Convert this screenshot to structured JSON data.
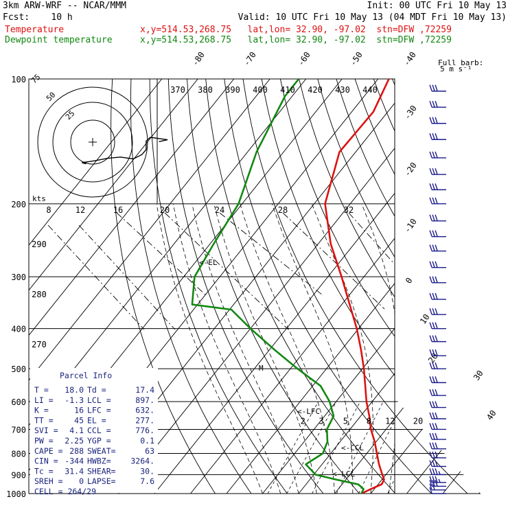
{
  "header": {
    "line1_left": "3km ARW-WRF -- NCAR/MMM",
    "line1_right": "Init: 00 UTC Fri 10 May 13",
    "line2_left": "Fcst:    10 h",
    "line2_right": "Valid: 10 UTC Fri 10 May 13 (04 MDT Fri 10 May 13)",
    "line3_label": "Temperature",
    "line3_info": "x,y=514.53,268.75   lat,lon= 32.90, -97.02  stn=DFW ,72259",
    "line4_label": "Dewpoint temperature",
    "line4_info": "x,y=514.53,268.75   lat,lon= 32.90, -97.02  stn=DFW ,72259",
    "barb_legend_1": "Full barb:",
    "barb_legend_2": "5 m s⁻¹"
  },
  "colors": {
    "temperature": "#dd1111",
    "dewpoint": "#118811",
    "text_blue": "#1a237e",
    "barbs": "#1a1a8c",
    "hodograph": "#000000"
  },
  "chart_data": {
    "type": "line",
    "pressure_levels": [
      100,
      200,
      300,
      400,
      500,
      600,
      700,
      800,
      900,
      1000
    ],
    "isotherm_labels": [
      "-80",
      "-70",
      "-60",
      "-50",
      "-40",
      "-30",
      "-20",
      "-10",
      "0",
      "10",
      "20",
      "30",
      "40"
    ],
    "theta_labels": [
      "370",
      "380",
      "390",
      "400",
      "410",
      "420",
      "430",
      "440"
    ],
    "theta_low_labels": [
      "290",
      "280",
      "270"
    ],
    "mixing_ratio_labels": [
      "2",
      "3",
      "5",
      "8",
      "12",
      "20"
    ],
    "speed_labels": [
      "8",
      "12",
      "16",
      "20",
      "24",
      "28",
      "32"
    ],
    "speed_units": "kts",
    "hodo_ring_labels": [
      "25",
      "50",
      "75"
    ],
    "series": [
      {
        "name": "Temperature",
        "profile": [
          [
            1000,
            17.4
          ],
          [
            975,
            19.0
          ],
          [
            950,
            21.0
          ],
          [
            925,
            20.6
          ],
          [
            900,
            19.0
          ],
          [
            850,
            15.8
          ],
          [
            800,
            12.8
          ],
          [
            750,
            9.6
          ],
          [
            700,
            5.8
          ],
          [
            650,
            2.4
          ],
          [
            600,
            -1.6
          ],
          [
            550,
            -5.4
          ],
          [
            500,
            -9.6
          ],
          [
            450,
            -14.6
          ],
          [
            400,
            -20.5
          ],
          [
            350,
            -27.8
          ],
          [
            300,
            -36.2
          ],
          [
            250,
            -46.5
          ],
          [
            200,
            -57.0
          ],
          [
            150,
            -64.5
          ],
          [
            120,
            -64.0
          ],
          [
            100,
            -67.0
          ]
        ]
      },
      {
        "name": "Dewpoint temperature",
        "profile": [
          [
            1000,
            17.4
          ],
          [
            975,
            17.0
          ],
          [
            950,
            14.5
          ],
          [
            925,
            7.2
          ],
          [
            900,
            0.5
          ],
          [
            850,
            -4.5
          ],
          [
            800,
            -2.2
          ],
          [
            750,
            -3.5
          ],
          [
            700,
            -6.4
          ],
          [
            650,
            -7.5
          ],
          [
            600,
            -11.8
          ],
          [
            550,
            -17.8
          ],
          [
            500,
            -28.0
          ],
          [
            450,
            -38.6
          ],
          [
            400,
            -50.0
          ],
          [
            360,
            -59.5
          ],
          [
            350,
            -71.5
          ],
          [
            300,
            -77.0
          ],
          [
            250,
            -79.0
          ],
          [
            200,
            -81.0
          ],
          [
            150,
            -87.5
          ],
          [
            110,
            -92.0
          ],
          [
            100,
            -92.0
          ]
        ]
      }
    ],
    "annotations": [
      "<-EL",
      "<-LFC",
      "<-CCL",
      "<-LCL",
      "M"
    ],
    "hodograph": [
      [
        -2,
        -13
      ],
      [
        -3,
        -11
      ],
      [
        0,
        -8
      ],
      [
        3,
        -4
      ],
      [
        6,
        -2
      ],
      [
        9,
        -5
      ],
      [
        11,
        2
      ],
      [
        12,
        10
      ],
      [
        12,
        24
      ],
      [
        13,
        30
      ],
      [
        15,
        28
      ],
      [
        17,
        26
      ],
      [
        15,
        23
      ]
    ],
    "wind_barbs": [
      {
        "p": 1000,
        "spd": 10,
        "dir": 160
      },
      {
        "p": 980,
        "spd": 20,
        "dir": 170
      },
      {
        "p": 960,
        "spd": 30,
        "dir": 190
      },
      {
        "p": 940,
        "spd": 35,
        "dir": 200
      },
      {
        "p": 900,
        "spd": 35,
        "dir": 215
      },
      {
        "p": 860,
        "spd": 30,
        "dir": 220
      },
      {
        "p": 820,
        "spd": 30,
        "dir": 225
      },
      {
        "p": 780,
        "spd": 30,
        "dir": 228
      },
      {
        "p": 740,
        "spd": 30,
        "dir": 230
      },
      {
        "p": 700,
        "spd": 30,
        "dir": 232
      },
      {
        "p": 660,
        "spd": 30,
        "dir": 232
      },
      {
        "p": 620,
        "spd": 30,
        "dir": 232
      },
      {
        "p": 580,
        "spd": 30,
        "dir": 232
      },
      {
        "p": 540,
        "spd": 30,
        "dir": 234
      },
      {
        "p": 500,
        "spd": 30,
        "dir": 235
      },
      {
        "p": 465,
        "spd": 30,
        "dir": 236
      },
      {
        "p": 430,
        "spd": 30,
        "dir": 237
      },
      {
        "p": 400,
        "spd": 30,
        "dir": 238
      },
      {
        "p": 370,
        "spd": 30,
        "dir": 238
      },
      {
        "p": 340,
        "spd": 30,
        "dir": 240
      },
      {
        "p": 310,
        "spd": 30,
        "dir": 240
      },
      {
        "p": 285,
        "spd": 30,
        "dir": 240
      },
      {
        "p": 260,
        "spd": 30,
        "dir": 242
      },
      {
        "p": 240,
        "spd": 30,
        "dir": 242
      },
      {
        "p": 220,
        "spd": 30,
        "dir": 242
      },
      {
        "p": 200,
        "spd": 30,
        "dir": 244
      },
      {
        "p": 185,
        "spd": 30,
        "dir": 244
      },
      {
        "p": 170,
        "spd": 30,
        "dir": 245
      },
      {
        "p": 155,
        "spd": 30,
        "dir": 245
      },
      {
        "p": 140,
        "spd": 30,
        "dir": 246
      },
      {
        "p": 128,
        "spd": 30,
        "dir": 246
      },
      {
        "p": 117,
        "spd": 30,
        "dir": 247
      },
      {
        "p": 107,
        "spd": 30,
        "dir": 248
      }
    ]
  },
  "parcel_info": {
    "title": "Parcel Info",
    "rows": [
      [
        "T  =",
        "18.0",
        "Td =",
        "17.4"
      ],
      [
        "LI =",
        "-1.3",
        "LCL =",
        "897."
      ],
      [
        "K  =",
        "16",
        "LFC =",
        "632."
      ],
      [
        "TT =",
        "45",
        "EL =",
        "277."
      ],
      [
        "SVI =",
        "4.1",
        "CCL =",
        "776."
      ],
      [
        "PW =",
        "2.25",
        "YGP =",
        "0.1"
      ],
      [
        "CAPE =",
        "288",
        "SWEAT=",
        "63"
      ],
      [
        "CIN =",
        "-344",
        "HWBZ=",
        "3264."
      ],
      [
        "Tc =",
        "31.4",
        "SHEAR=",
        "30."
      ],
      [
        "SREH =",
        "0",
        "LAPSE=",
        "7.6"
      ]
    ],
    "cell_label": "CELL = 264/29"
  }
}
